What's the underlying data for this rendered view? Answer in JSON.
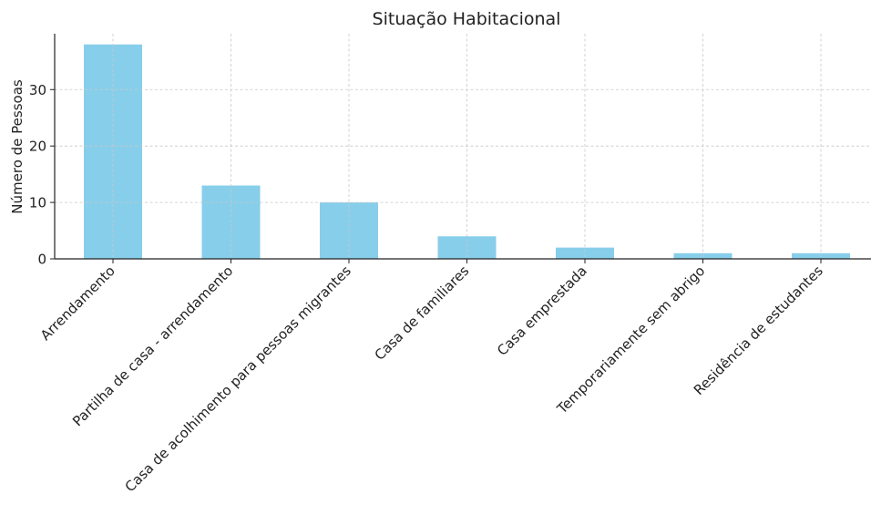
{
  "chart_data": {
    "type": "bar",
    "title": "Situação Habitacional",
    "xlabel": "",
    "ylabel": "Número de Pessoas",
    "categories": [
      "Arrendamento",
      "Partilha de casa - arrendamento",
      "Casa de acolhimento para pessoas migrantes",
      "Casa de familiares",
      "Casa emprestada",
      "Temporariamente sem abrigo",
      "Residência de estudantes"
    ],
    "values": [
      38,
      13,
      10,
      4,
      2,
      1,
      1
    ],
    "ylim": [
      0,
      39.9
    ],
    "yticks": [
      0,
      10,
      20,
      30
    ],
    "grid": true,
    "bar_color": "#87ceeb"
  }
}
